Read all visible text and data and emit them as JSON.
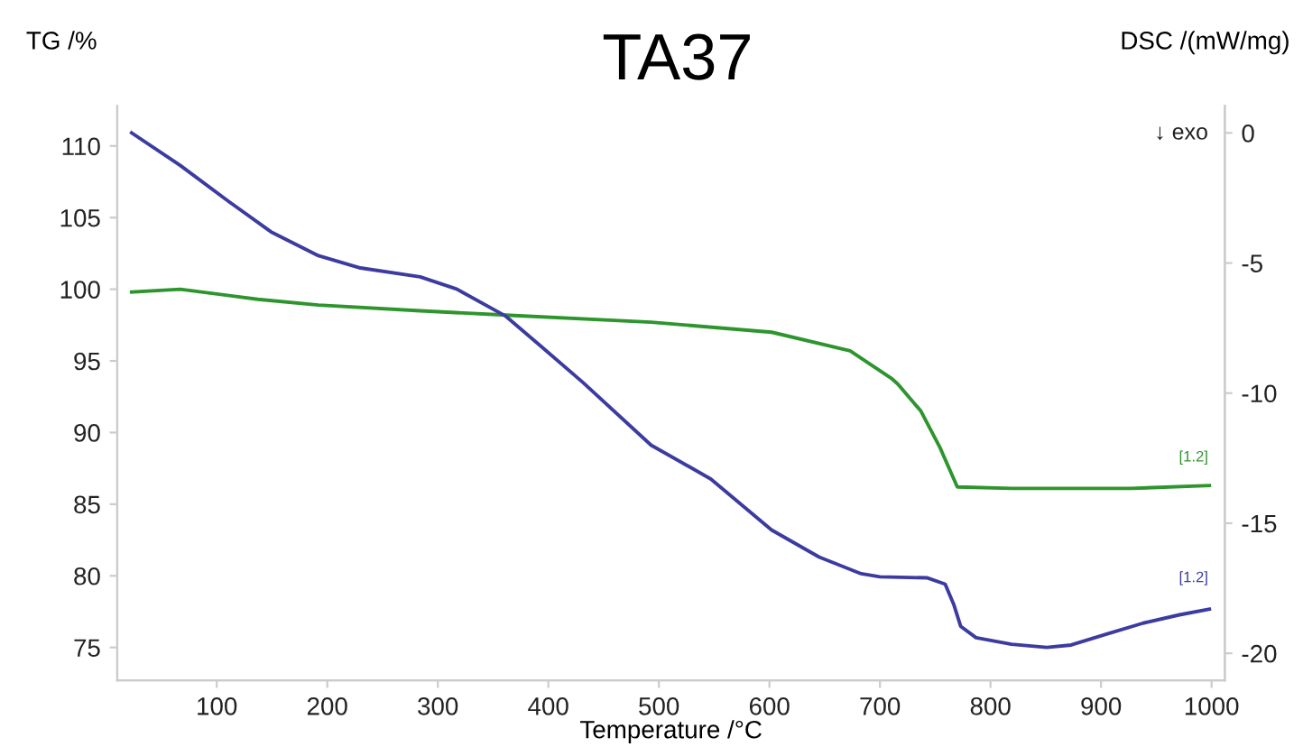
{
  "chart_data": {
    "type": "line",
    "title": "TA37",
    "xlabel": "Temperature /°C",
    "ylabel": "TG /%",
    "y2label": "DSC /(mW/mg)",
    "xlim": [
      10,
      1012
    ],
    "xticks": [
      100,
      200,
      300,
      400,
      500,
      600,
      700,
      800,
      900,
      1000
    ],
    "ylim": [
      72.7,
      112.8
    ],
    "yticks": [
      75,
      80,
      85,
      90,
      95,
      100,
      105,
      110
    ],
    "y2lim": [
      -21.04,
      1.04
    ],
    "y2ticks": [
      -20,
      -15,
      -10,
      -5,
      0
    ],
    "grid": false,
    "marker": "none",
    "line_style": "solid",
    "series": [
      {
        "color": "#2e952e",
        "x": [
          23,
          67,
          137,
          192,
          284,
          361,
          493,
          602,
          673,
          710,
          716,
          737,
          754,
          770,
          819,
          873,
          927,
          998
        ],
        "values": [
          99.8,
          100.0,
          99.3,
          98.9,
          98.5,
          98.2,
          97.7,
          97.0,
          95.7,
          93.8,
          93.4,
          91.5,
          89.0,
          86.2,
          86.1,
          86.1,
          86.1,
          86.3
        ]
      },
      {
        "color": "#3c3ca0",
        "axis": "y2",
        "x": [
          23,
          67,
          111,
          149,
          192,
          230,
          284,
          317,
          361,
          393,
          431,
          493,
          547,
          602,
          645,
          683,
          700,
          743,
          759,
          767,
          773,
          787,
          819,
          851,
          873,
          905,
          938,
          971,
          998
        ],
        "values": [
          0,
          -1.25,
          -2.64,
          -3.8,
          -4.72,
          -5.19,
          -5.53,
          -6.0,
          -7.03,
          -8.19,
          -9.58,
          -12.0,
          -13.3,
          -15.26,
          -16.3,
          -16.94,
          -17.06,
          -17.1,
          -17.34,
          -18.15,
          -18.96,
          -19.4,
          -19.65,
          -19.77,
          -19.68,
          -19.26,
          -18.84,
          -18.52,
          -18.3
        ]
      }
    ],
    "annotations": [
      "[1.2]",
      "[1.2]",
      "↓ exo"
    ]
  }
}
